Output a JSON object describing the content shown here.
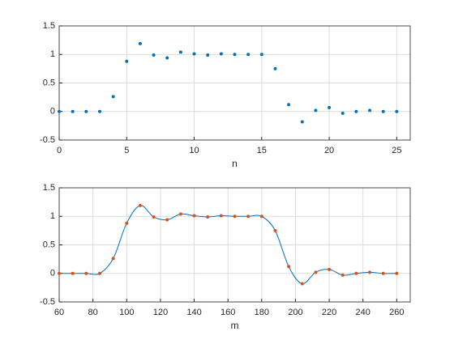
{
  "chart_data": [
    {
      "type": "scatter",
      "xlabel": "n",
      "x": [
        0,
        1,
        2,
        3,
        4,
        5,
        6,
        7,
        8,
        9,
        10,
        11,
        12,
        13,
        14,
        15,
        16,
        17,
        18,
        19,
        20,
        21,
        22,
        23,
        24,
        25
      ],
      "values": [
        0,
        0,
        0,
        0,
        0.26,
        0.88,
        1.19,
        0.99,
        0.94,
        1.04,
        1.01,
        0.99,
        1.01,
        1.0,
        1.0,
        1.0,
        0.75,
        0.12,
        -0.18,
        0.02,
        0.07,
        -0.03,
        0.0,
        0.02,
        0.0,
        0.0
      ],
      "color": "#0072bd",
      "xlim": [
        0,
        26
      ],
      "xticks": [
        0,
        5,
        10,
        15,
        20,
        25
      ],
      "ylim": [
        -0.5,
        1.5
      ],
      "yticks": [
        -0.5,
        0,
        0.5,
        1,
        1.5
      ],
      "grid": true
    },
    {
      "type": "line",
      "xlabel": "m",
      "curve": "smooth",
      "x": [
        60,
        68,
        76,
        84,
        92,
        100,
        108,
        116,
        124,
        132,
        140,
        148,
        156,
        164,
        172,
        180,
        188,
        196,
        204,
        212,
        220,
        228,
        236,
        244,
        252,
        260
      ],
      "values": [
        0,
        0,
        0,
        0,
        0.26,
        0.88,
        1.19,
        0.99,
        0.94,
        1.04,
        1.01,
        0.99,
        1.01,
        1.0,
        1.0,
        1.0,
        0.75,
        0.12,
        -0.18,
        0.02,
        0.07,
        -0.03,
        0.0,
        0.02,
        0.0,
        0.0
      ],
      "color": "#0072bd",
      "marker_color": "#d95319",
      "xlim": [
        60,
        268
      ],
      "xticks": [
        60,
        80,
        100,
        120,
        140,
        160,
        180,
        200,
        220,
        240,
        260
      ],
      "ylim": [
        -0.5,
        1.5
      ],
      "yticks": [
        -0.5,
        0,
        0.5,
        1,
        1.5
      ],
      "grid": true
    }
  ]
}
